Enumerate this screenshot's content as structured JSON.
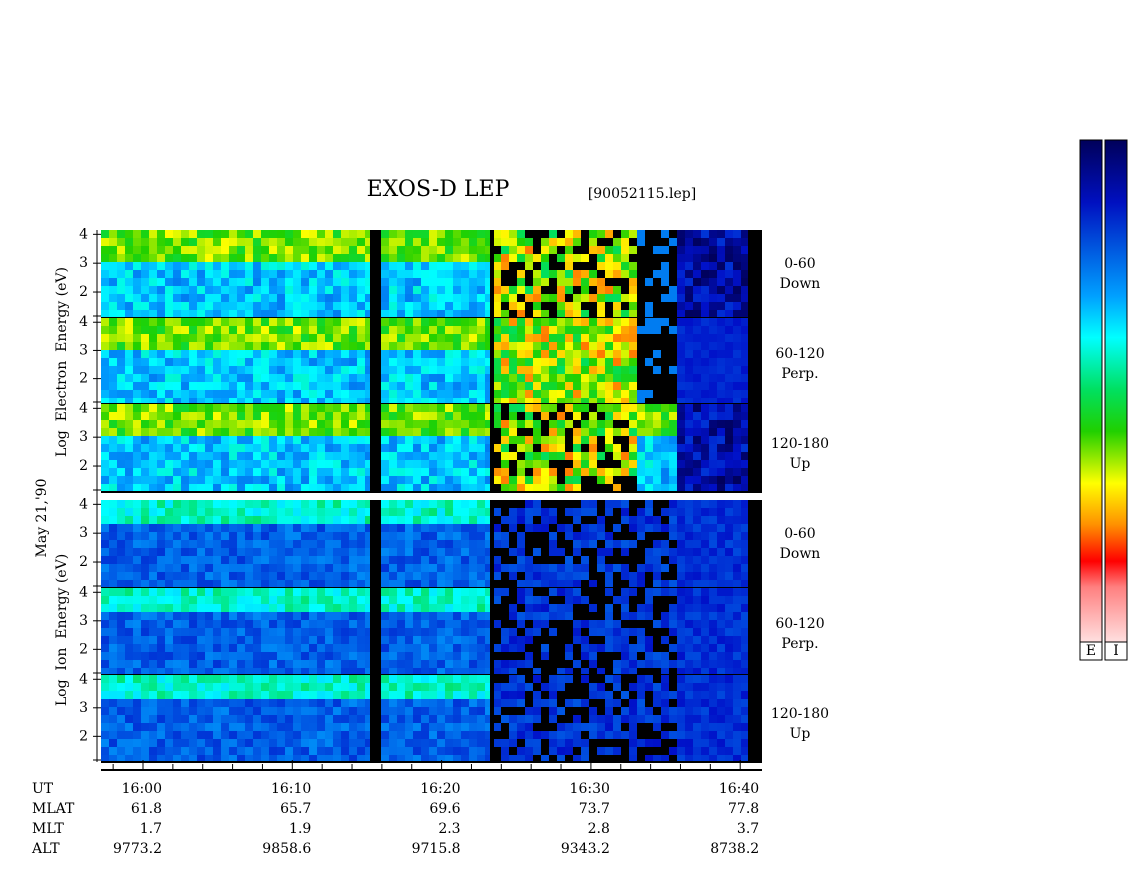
{
  "title": "EXOS-D LEP",
  "file": "[90052115.lep]",
  "date_label": "May 21,'90",
  "electron": {
    "ylabel": "Log  Electron  Energy (eV)",
    "yticks": [
      2,
      3,
      4
    ],
    "panels": [
      {
        "range": "0-60",
        "dir": "Down"
      },
      {
        "range": "60-120",
        "dir": "Perp."
      },
      {
        "range": "120-180",
        "dir": "Up"
      }
    ]
  },
  "ion": {
    "ylabel": "Log  Ion  Energy (eV)",
    "yticks": [
      2,
      3,
      4
    ],
    "panels": [
      {
        "range": "0-60",
        "dir": "Down"
      },
      {
        "range": "60-120",
        "dir": "Perp."
      },
      {
        "range": "120-180",
        "dir": "Up"
      }
    ]
  },
  "footer": {
    "rows": [
      {
        "name": "UT",
        "values": [
          "16:00",
          "16:10",
          "16:20",
          "16:30",
          "16:40"
        ]
      },
      {
        "name": "MLAT",
        "values": [
          "61.8",
          "65.7",
          "69.6",
          "73.7",
          "77.8"
        ]
      },
      {
        "name": "MLT",
        "values": [
          "1.7",
          "1.9",
          "2.3",
          "2.8",
          "3.7"
        ]
      },
      {
        "name": "ALT",
        "values": [
          "9773.2",
          "9858.6",
          "9715.8",
          "9343.2",
          "8738.2"
        ]
      }
    ]
  },
  "colorbar": {
    "labels": [
      "E",
      "I"
    ]
  }
}
